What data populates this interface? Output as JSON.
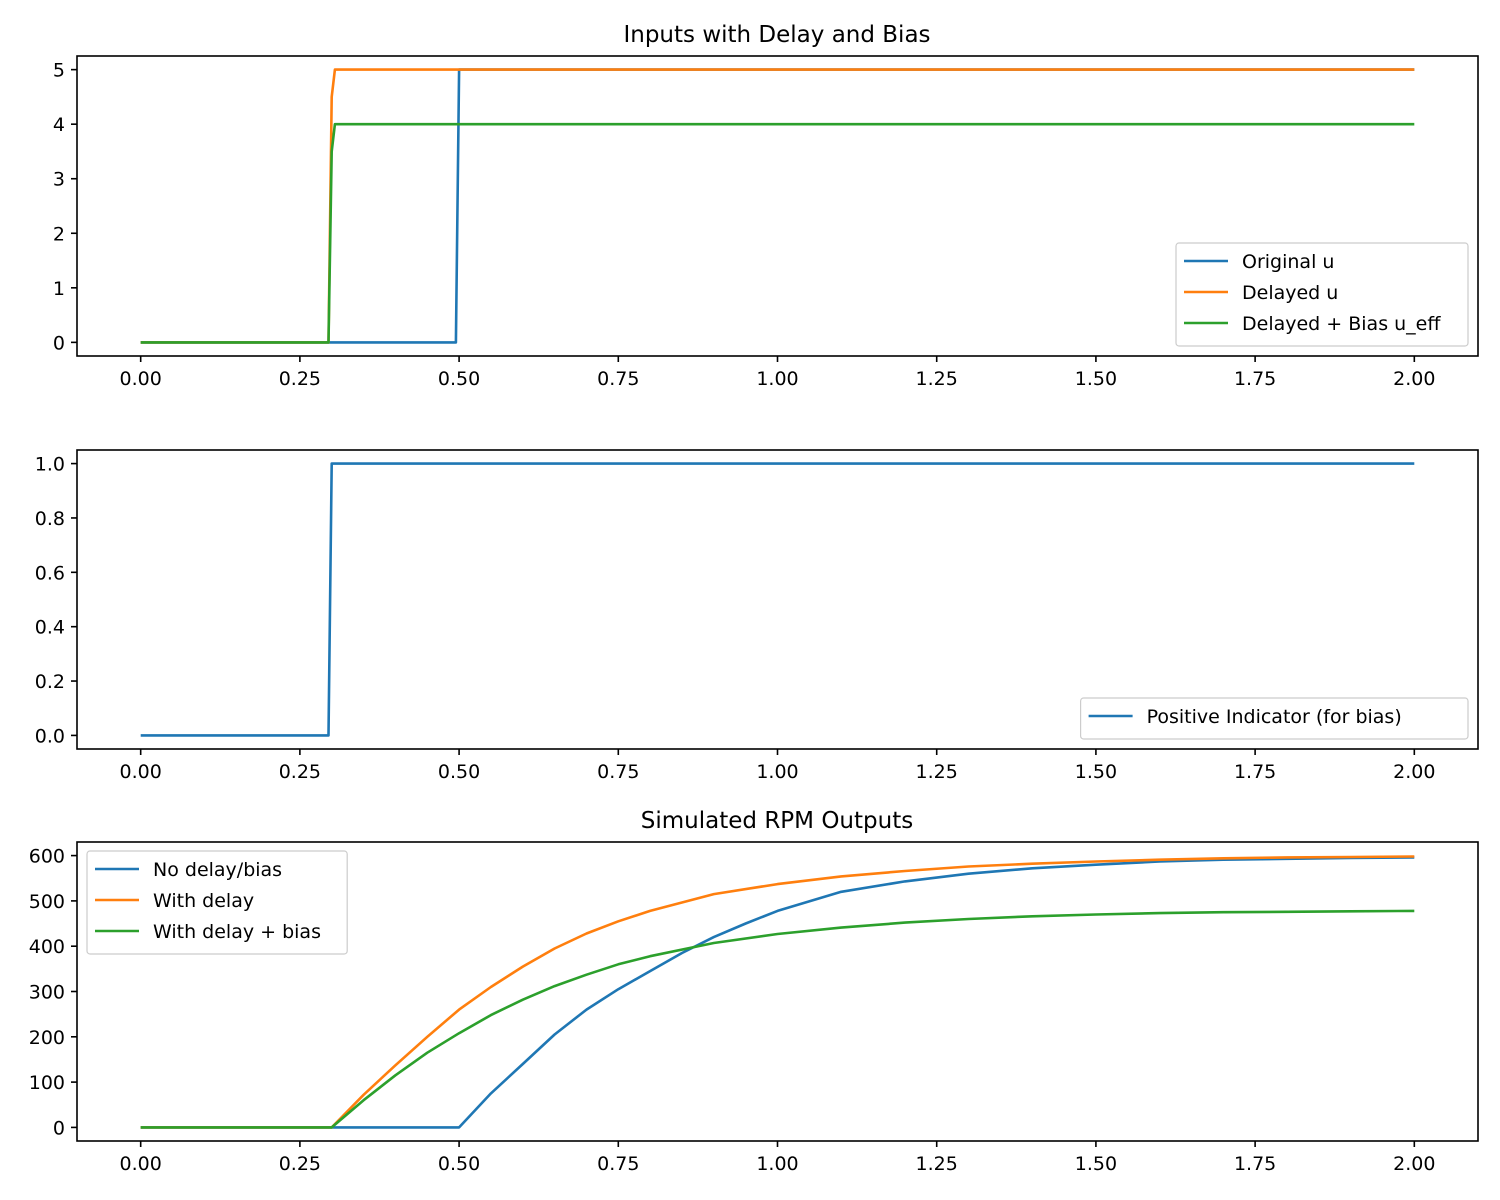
{
  "chart_data": [
    {
      "type": "line",
      "title": "Inputs with Delay and Bias",
      "xlim": [
        -0.1,
        2.1
      ],
      "ylim": [
        -0.25,
        5.25
      ],
      "xticks": [
        "0.00",
        "0.25",
        "0.50",
        "0.75",
        "1.00",
        "1.25",
        "1.50",
        "1.75",
        "2.00"
      ],
      "yticks": [
        "0",
        "1",
        "2",
        "3",
        "4",
        "5"
      ],
      "legend_position": "lower-right",
      "series": [
        {
          "name": "Original u",
          "color": "#1f77b4",
          "x": [
            0,
            0.495,
            0.5,
            2.0
          ],
          "y": [
            0,
            0,
            5,
            5
          ]
        },
        {
          "name": "Delayed u",
          "color": "#ff7f0e",
          "x": [
            0,
            0.295,
            0.3,
            0.305,
            2.0
          ],
          "y": [
            0,
            0,
            4.5,
            5,
            5
          ]
        },
        {
          "name": "Delayed + Bias u_eff",
          "color": "#2ca02c",
          "x": [
            0,
            0.295,
            0.3,
            0.305,
            2.0
          ],
          "y": [
            0,
            0,
            3.5,
            4,
            4
          ]
        }
      ]
    },
    {
      "type": "line",
      "title": "",
      "xlim": [
        -0.1,
        2.1
      ],
      "ylim": [
        -0.05,
        1.05
      ],
      "xticks": [
        "0.00",
        "0.25",
        "0.50",
        "0.75",
        "1.00",
        "1.25",
        "1.50",
        "1.75",
        "2.00"
      ],
      "yticks": [
        "0.0",
        "0.2",
        "0.4",
        "0.6",
        "0.8",
        "1.0"
      ],
      "legend_position": "lower-right",
      "series": [
        {
          "name": "Positive Indicator (for bias)",
          "color": "#1f77b4",
          "x": [
            0,
            0.295,
            0.3,
            2.0
          ],
          "y": [
            0,
            0,
            1,
            1
          ]
        }
      ]
    },
    {
      "type": "line",
      "title": "Simulated RPM Outputs",
      "xlim": [
        -0.1,
        2.1
      ],
      "ylim": [
        -30,
        630
      ],
      "xticks": [
        "0.00",
        "0.25",
        "0.50",
        "0.75",
        "1.00",
        "1.25",
        "1.50",
        "1.75",
        "2.00"
      ],
      "yticks": [
        "0",
        "100",
        "200",
        "300",
        "400",
        "500",
        "600"
      ],
      "legend_position": "upper-left",
      "series": [
        {
          "name": "No delay/bias",
          "color": "#1f77b4",
          "x": [
            0,
            0.5,
            0.55,
            0.6,
            0.65,
            0.7,
            0.75,
            0.8,
            0.85,
            0.9,
            0.95,
            1.0,
            1.1,
            1.2,
            1.3,
            1.4,
            1.5,
            1.6,
            1.7,
            1.8,
            1.9,
            2.0
          ],
          "y": [
            0,
            0,
            75,
            140,
            205,
            260,
            305,
            345,
            385,
            420,
            450,
            478,
            520,
            543,
            560,
            572,
            580,
            587,
            591,
            593,
            595,
            596
          ]
        },
        {
          "name": "With delay",
          "color": "#ff7f0e",
          "x": [
            0,
            0.3,
            0.35,
            0.4,
            0.45,
            0.5,
            0.55,
            0.6,
            0.65,
            0.7,
            0.75,
            0.8,
            0.9,
            1.0,
            1.1,
            1.2,
            1.3,
            1.4,
            1.5,
            1.6,
            1.7,
            1.8,
            1.9,
            2.0
          ],
          "y": [
            0,
            0,
            72,
            137,
            200,
            260,
            310,
            355,
            395,
            428,
            455,
            478,
            515,
            537,
            554,
            566,
            576,
            582,
            587,
            591,
            594,
            596,
            597,
            598
          ]
        },
        {
          "name": "With delay + bias",
          "color": "#2ca02c",
          "x": [
            0,
            0.3,
            0.35,
            0.4,
            0.45,
            0.5,
            0.55,
            0.6,
            0.65,
            0.7,
            0.75,
            0.8,
            0.9,
            1.0,
            1.1,
            1.2,
            1.3,
            1.4,
            1.5,
            1.6,
            1.7,
            1.8,
            1.9,
            2.0
          ],
          "y": [
            0,
            0,
            60,
            115,
            165,
            208,
            248,
            282,
            312,
            337,
            360,
            378,
            407,
            427,
            441,
            452,
            460,
            466,
            470,
            473,
            475,
            476,
            477,
            478
          ]
        }
      ]
    }
  ]
}
